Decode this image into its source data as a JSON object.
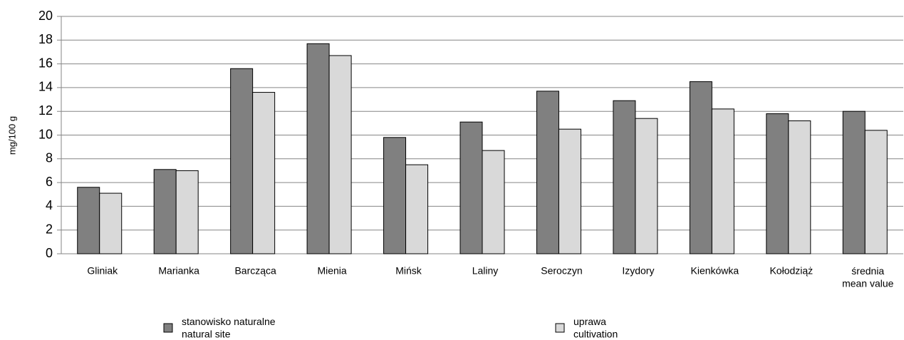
{
  "chart_data": {
    "type": "bar",
    "y_label": "mg/100 g",
    "categories": [
      "Gliniak",
      "Marianka",
      "Barcząca",
      "Mienia",
      "Mińsk",
      "Laliny",
      "Seroczyn",
      "Izydory",
      "Kienkówka",
      "Kołodziąż",
      "średnia\nmean value"
    ],
    "series": [
      {
        "name": "stanowisko naturalne\nnatural site",
        "color": "#808080",
        "values": [
          5.6,
          7.1,
          15.6,
          17.7,
          9.8,
          11.1,
          13.7,
          12.9,
          14.5,
          11.8,
          12.0
        ]
      },
      {
        "name": "uprawa\ncultivation",
        "color": "#d9d9d9",
        "values": [
          5.1,
          7.0,
          13.6,
          16.7,
          7.5,
          8.7,
          10.5,
          11.4,
          12.2,
          11.2,
          10.4
        ]
      }
    ],
    "ylim": [
      0,
      20
    ],
    "yticks": [
      0,
      2,
      4,
      6,
      8,
      10,
      12,
      14,
      16,
      18,
      20
    ],
    "grid": true,
    "legend": "bottom"
  }
}
